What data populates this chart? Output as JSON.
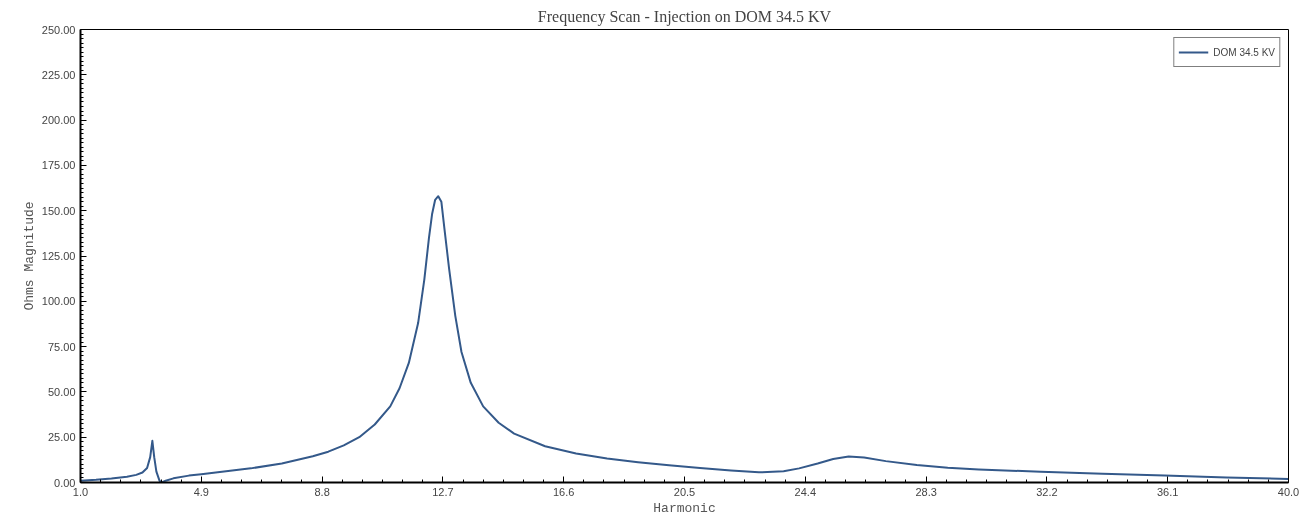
{
  "chart_data": {
    "type": "line",
    "title": "Frequency Scan - Injection on DOM 34.5 KV",
    "xlabel": "Harmonic",
    "ylabel": "Ohms Magnitude",
    "xlim": [
      1.0,
      40.0
    ],
    "ylim": [
      0,
      250
    ],
    "xticks": [
      {
        "value": 1.0,
        "label": "1.0"
      },
      {
        "value": 4.9,
        "label": "4.9"
      },
      {
        "value": 8.8,
        "label": "8.8"
      },
      {
        "value": 12.7,
        "label": "12.7"
      },
      {
        "value": 16.6,
        "label": "16.6"
      },
      {
        "value": 20.5,
        "label": "20.5"
      },
      {
        "value": 24.4,
        "label": "24.4"
      },
      {
        "value": 28.3,
        "label": "28.3"
      },
      {
        "value": 32.2,
        "label": "32.2"
      },
      {
        "value": 36.1,
        "label": "36.1"
      },
      {
        "value": 40.0,
        "label": "40.0"
      }
    ],
    "yticks": [
      {
        "value": 0,
        "label": "0.00"
      },
      {
        "value": 25,
        "label": "25.00"
      },
      {
        "value": 50,
        "label": "50.00"
      },
      {
        "value": 75,
        "label": "75.00"
      },
      {
        "value": 100,
        "label": "100.00"
      },
      {
        "value": 125,
        "label": "125.00"
      },
      {
        "value": 150,
        "label": "150.00"
      },
      {
        "value": 175,
        "label": "175.00"
      },
      {
        "value": 200,
        "label": "200.00"
      },
      {
        "value": 225,
        "label": "225.00"
      },
      {
        "value": 250,
        "label": "250.00"
      }
    ],
    "grid": false,
    "legend": "top right",
    "series": [
      {
        "name": "DOM 34.5 KV",
        "color": "#34598a",
        "x": [
          1.0,
          1.5,
          2.0,
          2.5,
          2.8,
          3.0,
          3.15,
          3.25,
          3.32,
          3.38,
          3.45,
          3.55,
          3.62,
          3.75,
          4.0,
          4.5,
          4.9,
          5.5,
          6.5,
          7.5,
          8.5,
          9.0,
          9.5,
          10.0,
          10.5,
          11.0,
          11.3,
          11.6,
          11.9,
          12.1,
          12.25,
          12.35,
          12.45,
          12.55,
          12.65,
          12.75,
          12.9,
          13.1,
          13.3,
          13.6,
          14.0,
          14.5,
          15.0,
          16.0,
          17.0,
          18.0,
          19.0,
          20.0,
          21.0,
          22.0,
          22.9,
          23.7,
          24.2,
          24.8,
          25.3,
          25.8,
          26.3,
          27.0,
          28.0,
          29.0,
          30.0,
          32.0,
          34.0,
          36.0,
          38.0,
          40.0
        ],
        "values": [
          1.0,
          1.5,
          2.2,
          3.2,
          4.2,
          5.5,
          8,
          14,
          23,
          14,
          6,
          1,
          0,
          1,
          2.3,
          3.8,
          4.6,
          5.8,
          7.8,
          10.5,
          14.5,
          17,
          20.5,
          25,
          32,
          42,
          52,
          66,
          88,
          112,
          135,
          148,
          156,
          158,
          155,
          140,
          118,
          92,
          72,
          55,
          42,
          33,
          27,
          20,
          16,
          13.2,
          11.2,
          9.5,
          8,
          6.6,
          5.6,
          6.2,
          7.8,
          10.5,
          13,
          14.3,
          13.8,
          11.8,
          9.6,
          8.2,
          7.2,
          5.9,
          4.8,
          3.8,
          2.8,
          2.0
        ]
      }
    ]
  }
}
